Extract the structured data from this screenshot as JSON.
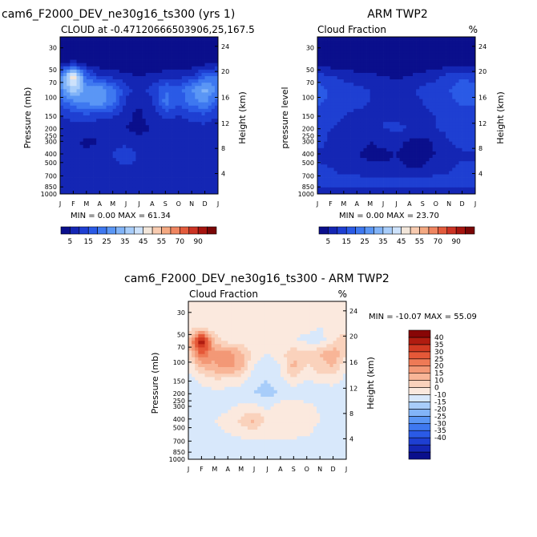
{
  "chart_data": [
    {
      "type": "heatmap",
      "title": "cam6_F2000_DEV_ne30g16_ts300 (yrs 1)",
      "subtitle": "CLOUD at -0.47120666503906,25,167.5",
      "ylabel": "Pressure (mb)",
      "ylabel_right": "Height (km)",
      "min_max_label": "MIN =    0.00 MAX =  61.34",
      "min": 0.0,
      "max": 61.34,
      "x": [
        "J",
        "F",
        "M",
        "A",
        "M",
        "J",
        "J",
        "A",
        "S",
        "O",
        "N",
        "D",
        "J"
      ],
      "y_pressure_ticks": [
        "30",
        "50",
        "70",
        "100",
        "150",
        "200",
        "250",
        "300",
        "400",
        "500",
        "700",
        "850",
        "1000"
      ],
      "y_height_ticks": [
        "24",
        "20",
        "16",
        "12",
        "8",
        "4"
      ],
      "colorbar": {
        "orientation": "horizontal",
        "labels": [
          "5",
          "15",
          "25",
          "35",
          "45",
          "55",
          "70",
          "90"
        ],
        "bounds": [
          0,
          5,
          10,
          15,
          20,
          25,
          30,
          35,
          40,
          45,
          50,
          55,
          60,
          70,
          80,
          90,
          100
        ],
        "colors": [
          "#0a0f8c",
          "#1426b4",
          "#1e3fd2",
          "#2a5ae6",
          "#3e78f0",
          "#5a96f5",
          "#82b4f8",
          "#a8cdfa",
          "#cde2fb",
          "#f2e6da",
          "#f8cbb0",
          "#f4a982",
          "#ef8560",
          "#e35b3c",
          "#cc3324",
          "#a6140f",
          "#7a0606"
        ]
      },
      "rows": [
        [
          2,
          2,
          2,
          2,
          2,
          2,
          2,
          2,
          2,
          2,
          2,
          2,
          2
        ],
        [
          2,
          2,
          2,
          2,
          2,
          2,
          2,
          2,
          2,
          2,
          2,
          2,
          2
        ],
        [
          4,
          6,
          3,
          2,
          2,
          2,
          2,
          2,
          2,
          2,
          2,
          3,
          4
        ],
        [
          22,
          52,
          18,
          10,
          8,
          6,
          5,
          6,
          7,
          8,
          10,
          18,
          22
        ],
        [
          24,
          40,
          28,
          30,
          22,
          12,
          8,
          12,
          20,
          18,
          25,
          32,
          24
        ],
        [
          16,
          24,
          26,
          28,
          22,
          9,
          5,
          9,
          22,
          16,
          22,
          26,
          16
        ],
        [
          10,
          12,
          14,
          12,
          11,
          6,
          4,
          7,
          12,
          10,
          12,
          14,
          10
        ],
        [
          7,
          8,
          7,
          6,
          6,
          5,
          4,
          5,
          6,
          6,
          8,
          8,
          7
        ],
        [
          9,
          6,
          4,
          5,
          6,
          7,
          6,
          7,
          6,
          8,
          9,
          9,
          9
        ],
        [
          8,
          7,
          6,
          7,
          10,
          16,
          8,
          7,
          7,
          8,
          8,
          8,
          8
        ],
        [
          7,
          7,
          7,
          7,
          8,
          9,
          8,
          7,
          7,
          8,
          7,
          7,
          7
        ],
        [
          9,
          9,
          9,
          9,
          9,
          9,
          9,
          9,
          9,
          9,
          9,
          9,
          9
        ],
        [
          5,
          5,
          5,
          5,
          5,
          5,
          5,
          5,
          5,
          5,
          5,
          5,
          5
        ]
      ]
    },
    {
      "type": "heatmap",
      "title": "ARM TWP2",
      "subtitle": "Cloud Fraction",
      "unit": "%",
      "ylabel": "pressure level",
      "ylabel_right": "Height (km)",
      "min_max_label": "MIN =    0.00 MAX =  23.70",
      "min": 0.0,
      "max": 23.7,
      "x": [
        "J",
        "F",
        "M",
        "A",
        "M",
        "J",
        "J",
        "A",
        "S",
        "O",
        "N",
        "D",
        "J"
      ],
      "y_pressure_ticks": [
        "30",
        "50",
        "70",
        "100",
        "150",
        "200",
        "250",
        "300",
        "400",
        "500",
        "700",
        "850",
        "1000"
      ],
      "y_height_ticks": [
        "24",
        "20",
        "16",
        "12",
        "8",
        "4"
      ],
      "colorbar": {
        "orientation": "horizontal",
        "labels": [
          "5",
          "15",
          "25",
          "35",
          "45",
          "55",
          "70",
          "90"
        ],
        "bounds": [
          0,
          5,
          10,
          15,
          20,
          25,
          30,
          35,
          40,
          45,
          50,
          55,
          60,
          70,
          80,
          90,
          100
        ],
        "colors": [
          "#0a0f8c",
          "#1426b4",
          "#1e3fd2",
          "#2a5ae6",
          "#3e78f0",
          "#5a96f5",
          "#82b4f8",
          "#a8cdfa",
          "#cde2fb",
          "#f2e6da",
          "#f8cbb0",
          "#f4a982",
          "#ef8560",
          "#e35b3c",
          "#cc3324",
          "#a6140f",
          "#7a0606"
        ]
      },
      "rows": [
        [
          1,
          1,
          1,
          1,
          1,
          1,
          1,
          1,
          1,
          1,
          1,
          1,
          1
        ],
        [
          1,
          1,
          1,
          1,
          1,
          1,
          1,
          1,
          1,
          1,
          1,
          1,
          1
        ],
        [
          2,
          2,
          2,
          1,
          1,
          1,
          1,
          1,
          1,
          1,
          2,
          2,
          2
        ],
        [
          12,
          10,
          9,
          7,
          6,
          5,
          4,
          5,
          7,
          9,
          12,
          15,
          12
        ],
        [
          18,
          14,
          12,
          11,
          10,
          9,
          8,
          9,
          11,
          12,
          15,
          17,
          18
        ],
        [
          16,
          14,
          12,
          11,
          10,
          10,
          9,
          9,
          10,
          12,
          14,
          16,
          16
        ],
        [
          12,
          11,
          10,
          9,
          9,
          10,
          9,
          8,
          9,
          10,
          11,
          12,
          12
        ],
        [
          11,
          10,
          9,
          8,
          9,
          10,
          11,
          10,
          9,
          10,
          11,
          11,
          11
        ],
        [
          12,
          9,
          7,
          6,
          5,
          6,
          7,
          4,
          3,
          6,
          10,
          12,
          12
        ],
        [
          9,
          8,
          6,
          5,
          4,
          4,
          5,
          3,
          3,
          5,
          8,
          9,
          9
        ],
        [
          11,
          10,
          8,
          7,
          6,
          6,
          6,
          5,
          5,
          7,
          9,
          11,
          11
        ],
        [
          12,
          12,
          12,
          12,
          12,
          12,
          12,
          12,
          12,
          12,
          12,
          12,
          12
        ],
        [
          8,
          8,
          8,
          8,
          8,
          8,
          8,
          8,
          8,
          8,
          8,
          8,
          8
        ]
      ]
    },
    {
      "type": "heatmap",
      "title": "cam6_F2000_DEV_ne30g16_ts300 - ARM TWP2",
      "subtitle": "Cloud Fraction",
      "unit": "%",
      "ylabel": "Pressure (mb)",
      "ylabel_right": "Height (km)",
      "min_max_label": "MIN = -10.07 MAX =  55.09",
      "min": -10.07,
      "max": 55.09,
      "x": [
        "J",
        "F",
        "M",
        "A",
        "M",
        "J",
        "J",
        "A",
        "S",
        "O",
        "N",
        "D",
        "J"
      ],
      "y_pressure_ticks": [
        "30",
        "50",
        "70",
        "100",
        "150",
        "200",
        "250",
        "300",
        "400",
        "500",
        "700",
        "850",
        "1000"
      ],
      "y_height_ticks": [
        "24",
        "20",
        "16",
        "12",
        "8",
        "4"
      ],
      "colorbar": {
        "orientation": "vertical",
        "labels": [
          "40",
          "35",
          "30",
          "25",
          "20",
          "15",
          "10",
          "0",
          "-10",
          "-15",
          "-20",
          "-25",
          "-30",
          "-35",
          "-40"
        ],
        "bounds": [
          -45,
          -40,
          -35,
          -30,
          -25,
          -20,
          -15,
          -10,
          -5,
          0,
          5,
          10,
          15,
          20,
          25,
          30,
          35,
          40,
          45
        ],
        "colors": [
          "#0a0f8c",
          "#1426b4",
          "#1e3fd2",
          "#2a5ae6",
          "#3e78f0",
          "#5a96f5",
          "#82b4f8",
          "#a8cdfa",
          "#d8e8fb",
          "#fbe9de",
          "#fad2bc",
          "#f8b597",
          "#f39876",
          "#ee7a56",
          "#e55838",
          "#d23a22",
          "#b01c10",
          "#880606"
        ]
      },
      "rows": [
        [
          1,
          1,
          1,
          1,
          1,
          1,
          1,
          1,
          1,
          1,
          1,
          1,
          1
        ],
        [
          1,
          1,
          1,
          1,
          1,
          1,
          1,
          1,
          1,
          1,
          1,
          1,
          1
        ],
        [
          2,
          4,
          1,
          1,
          1,
          1,
          1,
          1,
          1,
          1,
          0,
          1,
          2
        ],
        [
          10,
          42,
          9,
          3,
          2,
          1,
          1,
          1,
          0,
          -1,
          -2,
          3,
          10
        ],
        [
          6,
          26,
          16,
          19,
          12,
          3,
          0,
          3,
          9,
          6,
          10,
          15,
          6
        ],
        [
          0,
          10,
          14,
          17,
          12,
          -1,
          -4,
          0,
          12,
          4,
          8,
          10,
          0
        ],
        [
          -2,
          1,
          4,
          3,
          2,
          -4,
          -5,
          -1,
          3,
          0,
          1,
          2,
          -2
        ],
        [
          -4,
          -2,
          -2,
          -2,
          -3,
          -5,
          -7,
          -5,
          -3,
          -4,
          -3,
          -3,
          -4
        ],
        [
          -3,
          -3,
          -3,
          -1,
          1,
          1,
          -1,
          3,
          3,
          2,
          -1,
          -3,
          -3
        ],
        [
          -1,
          -1,
          0,
          2,
          6,
          12,
          3,
          4,
          4,
          3,
          0,
          -1,
          -1
        ],
        [
          -4,
          -3,
          -1,
          0,
          2,
          3,
          2,
          2,
          2,
          1,
          -2,
          -4,
          -4
        ],
        [
          -3,
          -3,
          -3,
          -3,
          -3,
          -3,
          -3,
          -3,
          -3,
          -3,
          -3,
          -3,
          -3
        ],
        [
          -3,
          -3,
          -3,
          -3,
          -3,
          -3,
          -3,
          -3,
          -3,
          -3,
          -3,
          -3,
          -3
        ]
      ]
    }
  ]
}
